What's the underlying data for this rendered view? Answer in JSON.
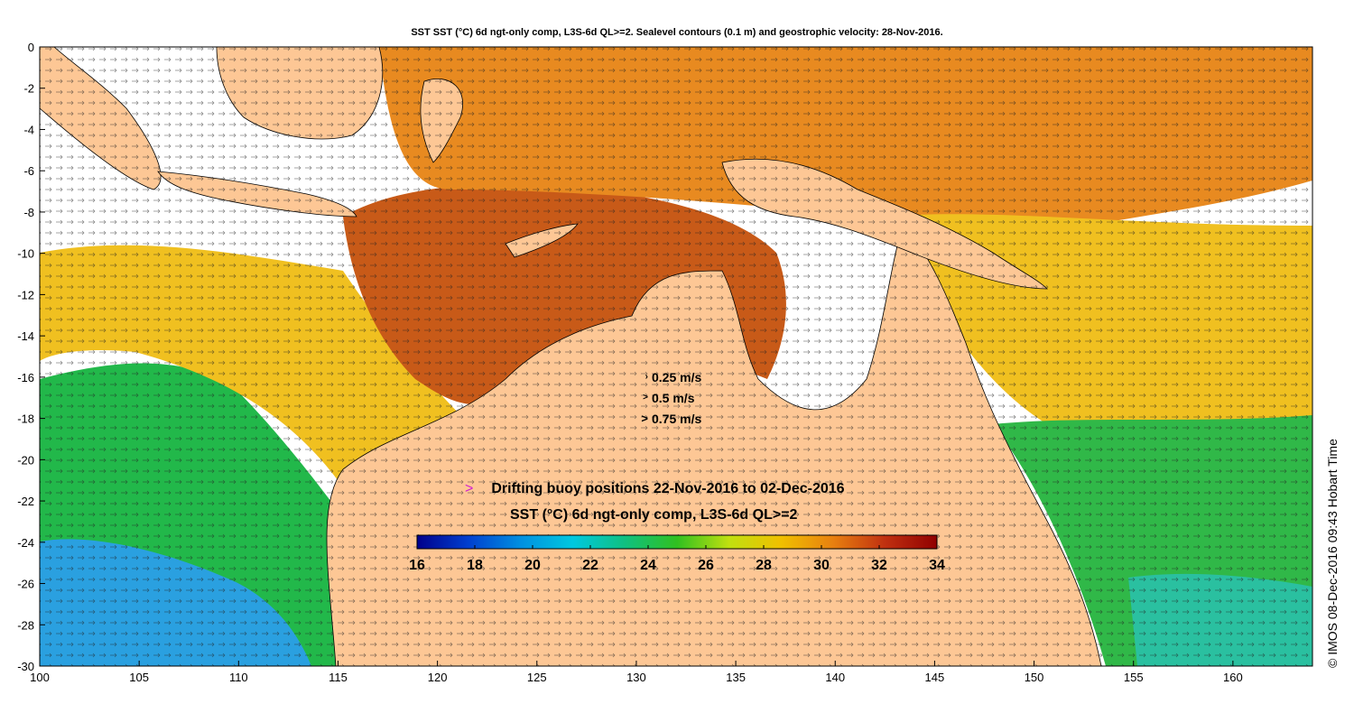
{
  "title": "SST SST (°C) 6d ngt-only comp, L3S-6d QL>=2. Sealevel contours (0.1 m) and geostrophic velocity: 28-Nov-2016.",
  "axes": {
    "x_ticks": [
      "100",
      "105",
      "110",
      "115",
      "120",
      "125",
      "130",
      "135",
      "140",
      "145",
      "150",
      "155",
      "160"
    ],
    "y_ticks": [
      "0",
      "-2",
      "-4",
      "-6",
      "-8",
      "-10",
      "-12",
      "-14",
      "-16",
      "-18",
      "-20",
      "-22",
      "-24",
      "-26",
      "-28",
      "-30"
    ],
    "lon_range": [
      100,
      164
    ],
    "lat_range": [
      -30,
      0
    ]
  },
  "velocity_legend": [
    {
      "label": "0.25 m/s"
    },
    {
      "label": "0.5 m/s"
    },
    {
      "label": "0.75 m/s"
    }
  ],
  "buoy_legend": {
    "marker": ">",
    "text": "Drifting buoy positions 22-Nov-2016 to 02-Dec-2016",
    "color": "#d020d0"
  },
  "colorbar": {
    "title": "SST (°C) 6d ngt-only comp, L3S-6d QL>=2",
    "ticks": [
      "16",
      "18",
      "20",
      "22",
      "24",
      "26",
      "28",
      "30",
      "32",
      "34"
    ],
    "range": [
      16,
      34
    ],
    "colors": [
      "#00008b",
      "#0040d0",
      "#0090e0",
      "#00c8e0",
      "#10c080",
      "#30c020",
      "#c0e010",
      "#f0c000",
      "#e88010",
      "#c03010",
      "#900000"
    ]
  },
  "colors": {
    "land": "#fdc795",
    "no_data": "#ffffff"
  },
  "copyright": "© IMOS 08-Dec-2016 09:43 Hobart Time"
}
